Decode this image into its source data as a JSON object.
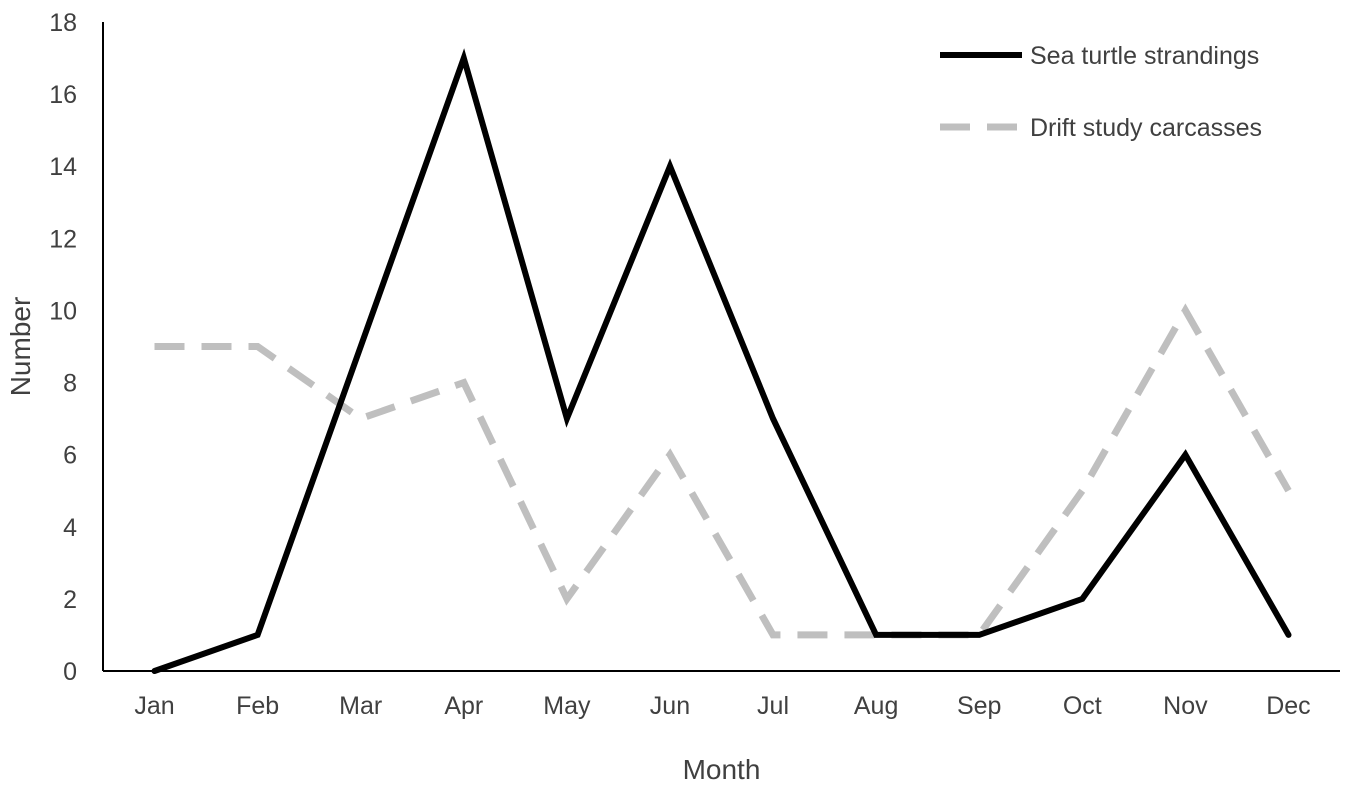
{
  "chart_data": {
    "type": "line",
    "title": "",
    "xlabel": "Month",
    "ylabel": "Number",
    "categories": [
      "Jan",
      "Feb",
      "Mar",
      "Apr",
      "May",
      "Jun",
      "Jul",
      "Aug",
      "Sep",
      "Oct",
      "Nov",
      "Dec"
    ],
    "ylim": [
      0,
      18
    ],
    "yticks": [
      0,
      2,
      4,
      6,
      8,
      10,
      12,
      14,
      16,
      18
    ],
    "grid": false,
    "legend_position": "top-right",
    "series": [
      {
        "name": "Sea turtle strandings",
        "values": [
          0,
          1,
          9,
          17,
          7,
          14,
          7,
          1,
          1,
          2,
          6,
          1
        ],
        "color": "#000000",
        "style": "solid"
      },
      {
        "name": "Drift study carcasses",
        "values": [
          9,
          9,
          7,
          8,
          2,
          6,
          1,
          1,
          1,
          5,
          10,
          5
        ],
        "color": "#bfbfbf",
        "style": "dashed"
      }
    ]
  }
}
